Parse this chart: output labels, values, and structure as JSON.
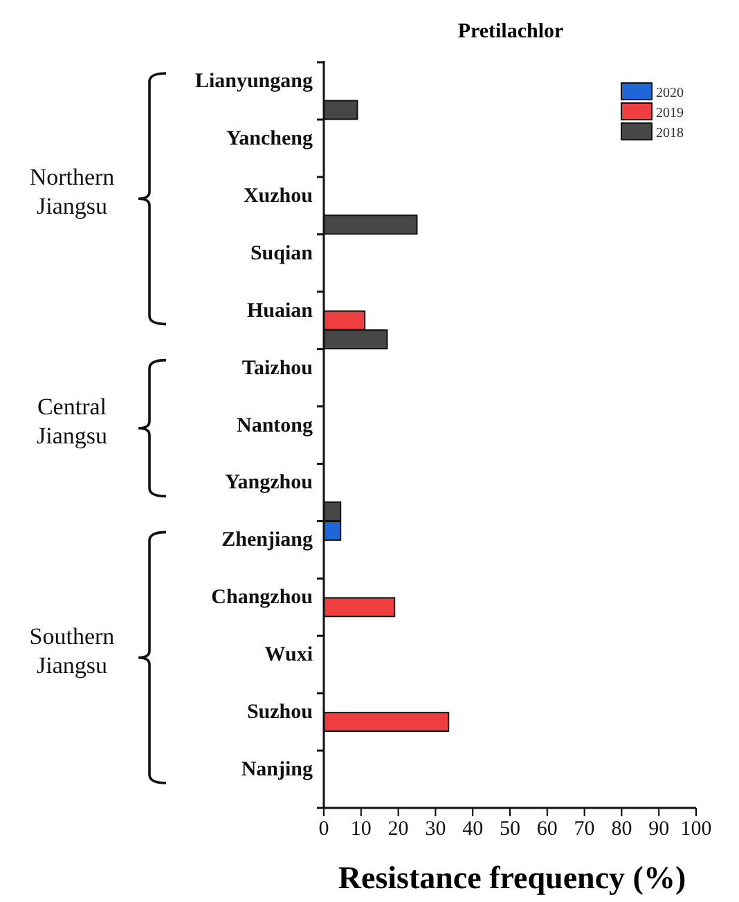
{
  "chart_data": {
    "type": "bar",
    "orientation": "horizontal",
    "title": "Pretilachlor",
    "xlabel": "Resistance frequency (%)",
    "categories": [
      "Lianyungang",
      "Yancheng",
      "Xuzhou",
      "Suqian",
      "Huaian",
      "Taizhou",
      "Nantong",
      "Yangzhou",
      "Zhenjiang",
      "Changzhou",
      "Wuxi",
      "Suzhou",
      "Nanjing"
    ],
    "series": [
      {
        "name": "2020",
        "color": "#1f66d9",
        "values": [
          0,
          0,
          0,
          0,
          0,
          0,
          0,
          0,
          4.5,
          0,
          0,
          0,
          0
        ]
      },
      {
        "name": "2019",
        "color": "#ee3e40",
        "values": [
          0,
          0,
          0,
          0,
          11,
          0,
          0,
          0,
          0,
          19,
          0,
          33.5,
          0
        ]
      },
      {
        "name": "2018",
        "color": "#474747",
        "values": [
          9,
          0,
          25,
          0,
          17,
          0,
          0,
          4.5,
          0,
          0,
          0,
          0,
          0
        ]
      }
    ],
    "xlim": [
      0,
      100
    ],
    "xticks": [
      0,
      10,
      20,
      30,
      40,
      50,
      60,
      70,
      80,
      90,
      100
    ],
    "grid": false,
    "legend": "top right",
    "annotations": [
      "Northern Jiangsu",
      "Central Jiangsu",
      "Southern Jiangsu"
    ]
  }
}
